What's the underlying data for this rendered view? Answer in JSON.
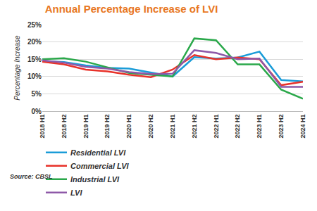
{
  "chart_data": {
    "type": "line",
    "title": "Annual Percentage Increase of LVI",
    "y_label": "Percentage Increase",
    "annotations": [
      "Source: CBSL"
    ],
    "categories": [
      "2018 H1",
      "2018 H2",
      "2019 H1",
      "2019 H2",
      "2020 H1",
      "2020 H2",
      "2021 H1",
      "2021 H2",
      "2022 H1",
      "2022 H2",
      "2023 H1",
      "2023 H2",
      "2024 H1"
    ],
    "series": [
      {
        "name": "Residential LVI",
        "color": "#1a9cd8",
        "values": [
          14.5,
          14.2,
          13.2,
          12.5,
          12.3,
          11.2,
          10.0,
          15.6,
          15.2,
          15.5,
          17.2,
          9.0,
          8.6
        ]
      },
      {
        "name": "Commercial LVI",
        "color": "#e8322a",
        "values": [
          14.3,
          13.5,
          12.0,
          11.5,
          10.5,
          9.8,
          12.0,
          16.2,
          15.0,
          15.5,
          15.0,
          7.5,
          8.5
        ]
      },
      {
        "name": "Industrial LVI",
        "color": "#2aa84a",
        "values": [
          15.0,
          15.3,
          14.3,
          12.7,
          11.0,
          10.5,
          10.0,
          21.0,
          20.5,
          13.5,
          13.5,
          6.2,
          3.6
        ]
      },
      {
        "name": "LVI",
        "color": "#8e59a8",
        "values": [
          14.7,
          14.0,
          12.8,
          12.3,
          11.3,
          10.7,
          10.8,
          17.6,
          16.8,
          15.0,
          15.2,
          7.0,
          7.0
        ]
      }
    ],
    "ylim": [
      0,
      25
    ],
    "yticks": [
      {
        "value": 0,
        "label": "0%"
      },
      {
        "value": 5,
        "label": "5%"
      },
      {
        "value": 10,
        "label": "10%"
      },
      {
        "value": 15,
        "label": "15%"
      },
      {
        "value": 20,
        "label": "20%"
      },
      {
        "value": 25,
        "label": "25%"
      }
    ],
    "grid": true,
    "legend": "bottom"
  }
}
